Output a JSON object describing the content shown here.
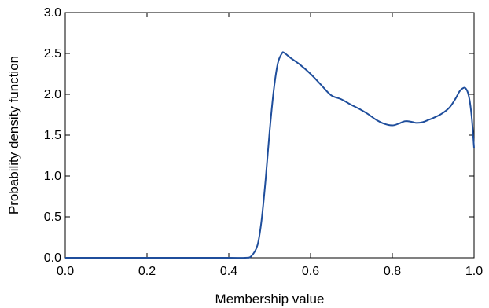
{
  "chart_data": {
    "type": "line",
    "title": "",
    "xlabel": "Membership value",
    "ylabel": "Probability density function",
    "xlim": [
      0.0,
      1.0
    ],
    "ylim": [
      0.0,
      3.0
    ],
    "xticks": [
      "0.0",
      "0.2",
      "0.4",
      "0.6",
      "0.8",
      "1.0"
    ],
    "yticks": [
      "0.0",
      "0.5",
      "1.0",
      "1.5",
      "2.0",
      "2.5",
      "3.0"
    ],
    "grid": false,
    "legend": "none",
    "line_color": "#1f4e9c",
    "series": [
      {
        "x": [
          0.0,
          0.1,
          0.2,
          0.3,
          0.4,
          0.44,
          0.455,
          0.47,
          0.48,
          0.49,
          0.5,
          0.51,
          0.52,
          0.53,
          0.535,
          0.55,
          0.575,
          0.6,
          0.625,
          0.65,
          0.675,
          0.7,
          0.72,
          0.74,
          0.76,
          0.78,
          0.8,
          0.815,
          0.83,
          0.84,
          0.85,
          0.86,
          0.875,
          0.89,
          0.9,
          0.92,
          0.94,
          0.955,
          0.965,
          0.975,
          0.98,
          0.985,
          0.99,
          0.995,
          1.0
        ],
        "y": [
          0.0,
          0.0,
          0.0,
          0.0,
          0.0,
          0.0,
          0.02,
          0.15,
          0.45,
          0.95,
          1.55,
          2.05,
          2.38,
          2.5,
          2.51,
          2.45,
          2.36,
          2.25,
          2.12,
          1.99,
          1.94,
          1.87,
          1.82,
          1.76,
          1.69,
          1.64,
          1.62,
          1.64,
          1.67,
          1.67,
          1.66,
          1.65,
          1.66,
          1.69,
          1.71,
          1.76,
          1.84,
          1.95,
          2.04,
          2.08,
          2.07,
          2.02,
          1.9,
          1.68,
          1.34
        ]
      }
    ]
  }
}
